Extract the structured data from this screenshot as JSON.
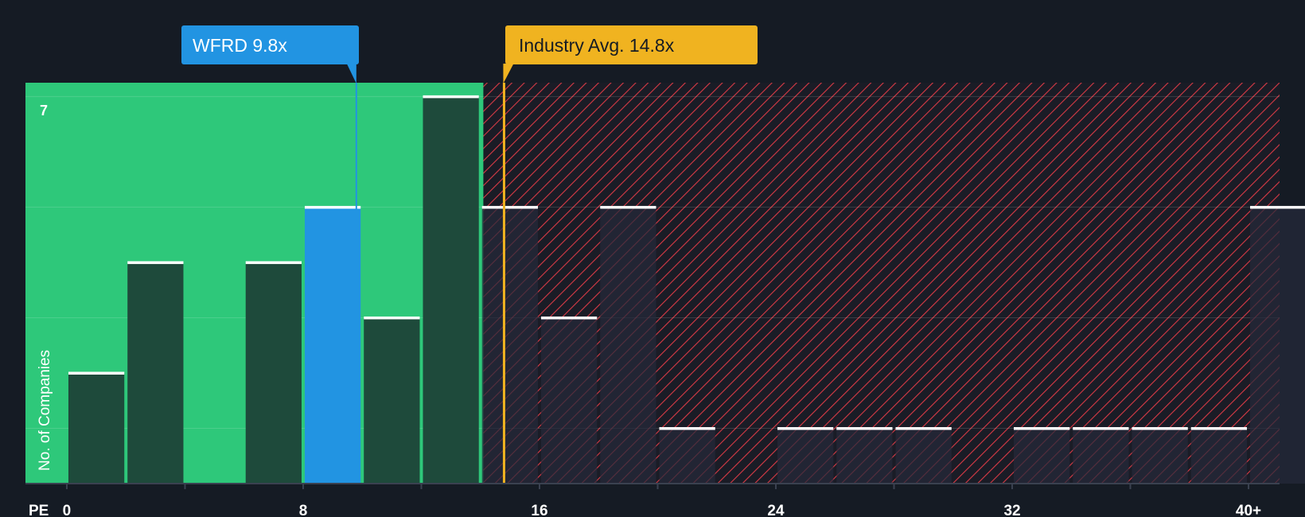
{
  "colors": {
    "background": "#151b24",
    "fair_zone": "#2ec87a",
    "overvalued_zone": "#d93a45",
    "bar_dark": "#1e4a3b",
    "bar_highlight": "#2294e2",
    "industry_marker": "#f0b320",
    "bar_cap": "#ffffff"
  },
  "chart_data": {
    "type": "bar",
    "xlabel": "PE",
    "ylabel": "No. of Companies",
    "x_ticks": [
      "0",
      "8",
      "16",
      "24",
      "32",
      "40+"
    ],
    "x_tick_values": [
      0,
      8,
      16,
      24,
      32,
      40
    ],
    "y_ticks": [
      "7"
    ],
    "y_tick_values": [
      7
    ],
    "ylim": [
      0,
      7.25
    ],
    "xlim": [
      -1.4,
      41.05
    ],
    "bin_width": 2,
    "bins": [
      {
        "start": 0,
        "count": 2
      },
      {
        "start": 2,
        "count": 4
      },
      {
        "start": 4,
        "count": 0
      },
      {
        "start": 6,
        "count": 4
      },
      {
        "start": 8,
        "count": 5
      },
      {
        "start": 10,
        "count": 3
      },
      {
        "start": 12,
        "count": 7
      },
      {
        "start": 14,
        "count": 5
      },
      {
        "start": 16,
        "count": 3
      },
      {
        "start": 18,
        "count": 5
      },
      {
        "start": 20,
        "count": 1
      },
      {
        "start": 22,
        "count": 0
      },
      {
        "start": 24,
        "count": 1
      },
      {
        "start": 26,
        "count": 1
      },
      {
        "start": 28,
        "count": 1
      },
      {
        "start": 30,
        "count": 0
      },
      {
        "start": 32,
        "count": 1
      },
      {
        "start": 34,
        "count": 1
      },
      {
        "start": 36,
        "count": 1
      },
      {
        "start": 38,
        "count": 1
      },
      {
        "start": 40,
        "count": 5
      }
    ],
    "company": {
      "ticker": "WFRD",
      "pe": 9.8,
      "label": "WFRD 9.8x"
    },
    "industry": {
      "pe": 14.8,
      "label": "Industry Avg. 14.8x"
    },
    "fair_zone_end": 14.1
  }
}
